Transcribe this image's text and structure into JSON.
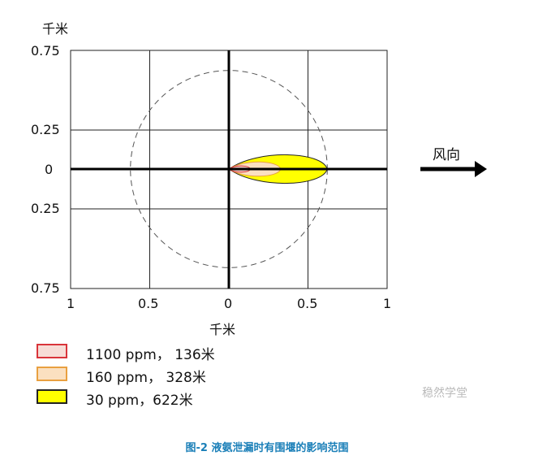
{
  "chart_data": {
    "type": "area",
    "xlabel": "千米",
    "ylabel": "千米",
    "x_ticks": [
      "1",
      "0.5",
      "0",
      "0.5",
      "1"
    ],
    "y_ticks": [
      "0.75",
      "0.25",
      "0",
      "0.25",
      "0.75"
    ],
    "xlim": [
      -1,
      1
    ],
    "ylim": [
      -0.75,
      0.75
    ],
    "grid": true,
    "wind_label": "风向",
    "wind_direction": "right",
    "reference_circle_radius_km": 0.622,
    "series": [
      {
        "name": "1100 ppm， 136米",
        "concentration_ppm": 1100,
        "distance_m": 136,
        "color": "#f2c9c0",
        "border": "#d9343a"
      },
      {
        "name": "160 ppm， 328米",
        "concentration_ppm": 160,
        "distance_m": 328,
        "color": "#fbe0c0",
        "border": "#e9a040"
      },
      {
        "name": "30 ppm，622米",
        "concentration_ppm": 30,
        "distance_m": 622,
        "color": "#ffff00",
        "border": "#222222"
      }
    ],
    "legend_position": "bottom-left"
  },
  "watermark": "稳然学堂",
  "caption": "图-2 液氨泄漏时有围堰的影响范围"
}
